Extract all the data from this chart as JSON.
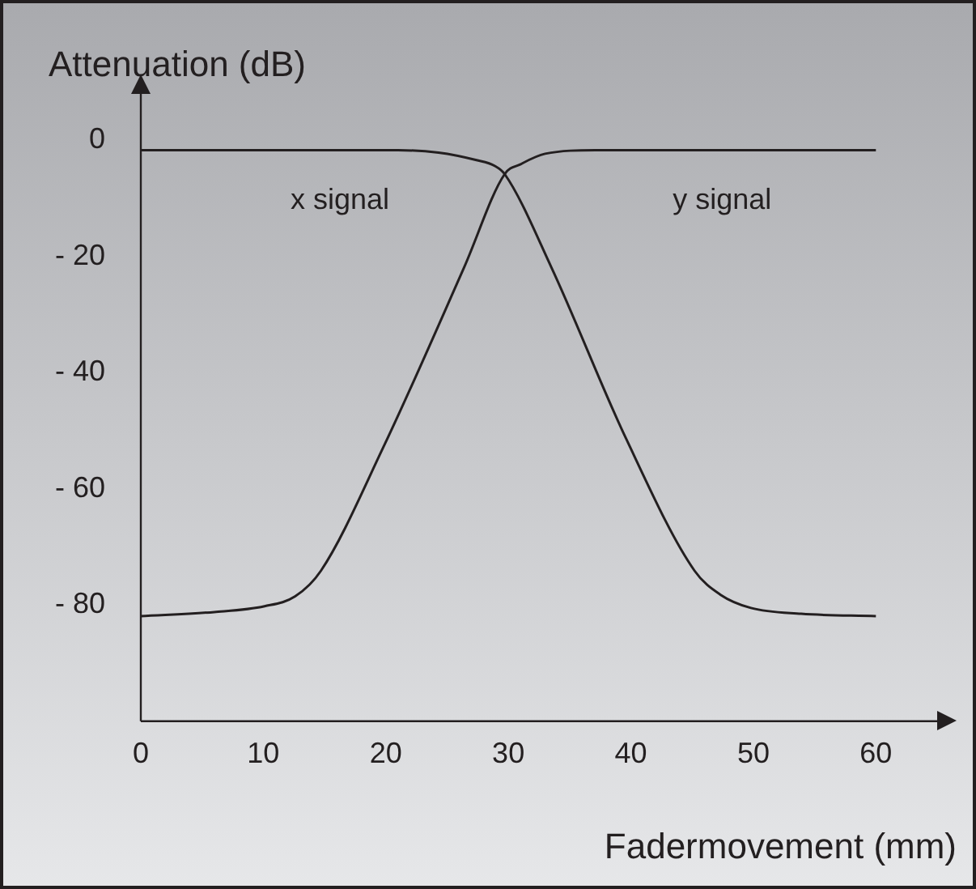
{
  "chart_data": {
    "type": "line",
    "xlabel": "Fadermovement (mm)",
    "ylabel": "Attenuation (dB)",
    "xlim": [
      0,
      65
    ],
    "xticks": [
      0,
      10,
      20,
      30,
      40,
      50,
      60
    ],
    "ylim": [
      -100,
      8
    ],
    "yticks": [
      {
        "value": 0,
        "label": "0"
      },
      {
        "value": -20,
        "label": "- 20"
      },
      {
        "value": -40,
        "label": "- 40"
      },
      {
        "value": -60,
        "label": "- 60"
      },
      {
        "value": -80,
        "label": "- 80"
      }
    ],
    "grid": false,
    "legend": false,
    "marker": "none",
    "line_style": "solid",
    "series": [
      {
        "color": "#231f20",
        "x": [
          0,
          21,
          24.3,
          27.4,
          28.9,
          29.7,
          33.5,
          39.6,
          45.2,
          47.3,
          49.8,
          53.9,
          60
        ],
        "values": [
          -1.7,
          -1.7,
          -2.1,
          -3.4,
          -4.4,
          -5.8,
          -21.8,
          -51.3,
          -74.1,
          -78.2,
          -80.5,
          -81.5,
          -81.9
        ]
      },
      {
        "color": "#231f20",
        "x": [
          0,
          6,
          10.1,
          12.6,
          14.7,
          19.8,
          26.4,
          29.7,
          31,
          33,
          37.1,
          60
        ],
        "values": [
          -81.9,
          -81.2,
          -80.2,
          -78.5,
          -74.1,
          -52.8,
          -21.8,
          -5.8,
          -4.1,
          -2.3,
          -1.7,
          -1.7
        ]
      }
    ],
    "annotations": [
      "x signal",
      "y signal"
    ]
  }
}
